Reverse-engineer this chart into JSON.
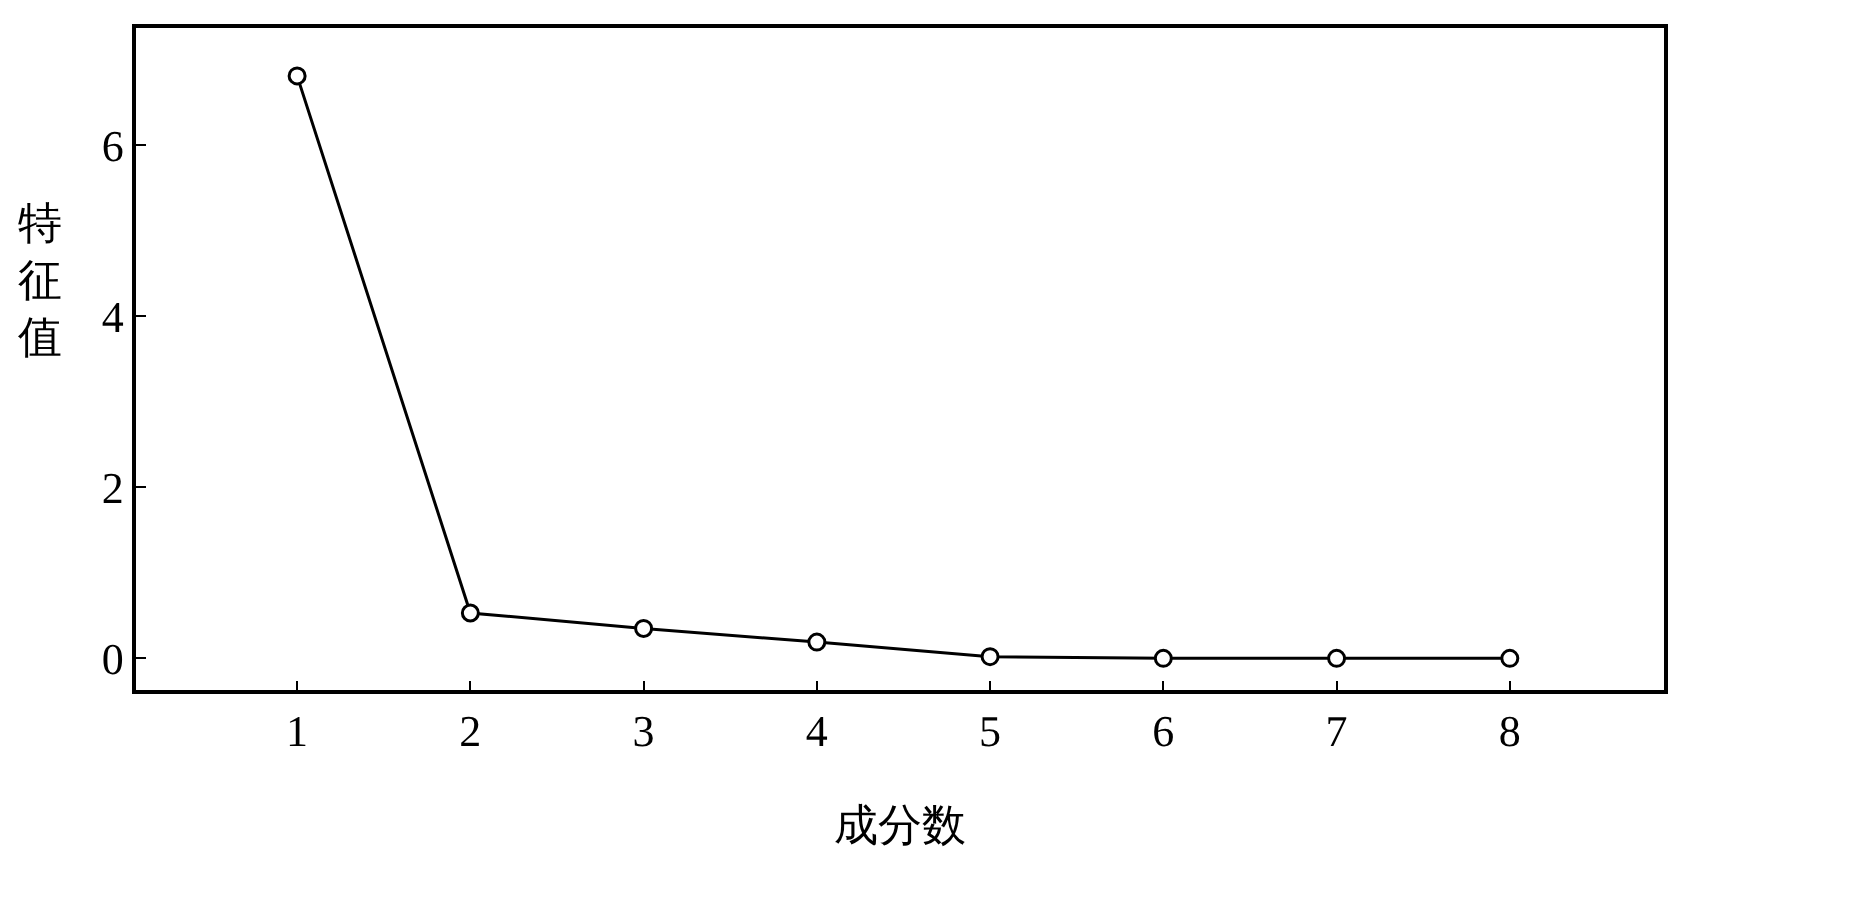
{
  "chart_data": {
    "type": "line",
    "xlabel": "成分数",
    "ylabel": "特征值",
    "x": [
      1,
      2,
      3,
      4,
      5,
      6,
      7,
      8
    ],
    "series": [
      {
        "color": "#000000",
        "values": [
          6.81,
          0.53,
          0.35,
          0.19,
          0.02,
          0.0,
          0.0,
          0.0
        ]
      }
    ],
    "xlim": [
      0.07,
      8.89
    ],
    "ylim": [
      -0.37,
      7.37
    ],
    "xticks": [
      1,
      2,
      3,
      4,
      5,
      6,
      7,
      8
    ],
    "yticks": [
      0,
      2,
      4,
      6
    ],
    "marker": "circle",
    "line_style": "solid"
  }
}
